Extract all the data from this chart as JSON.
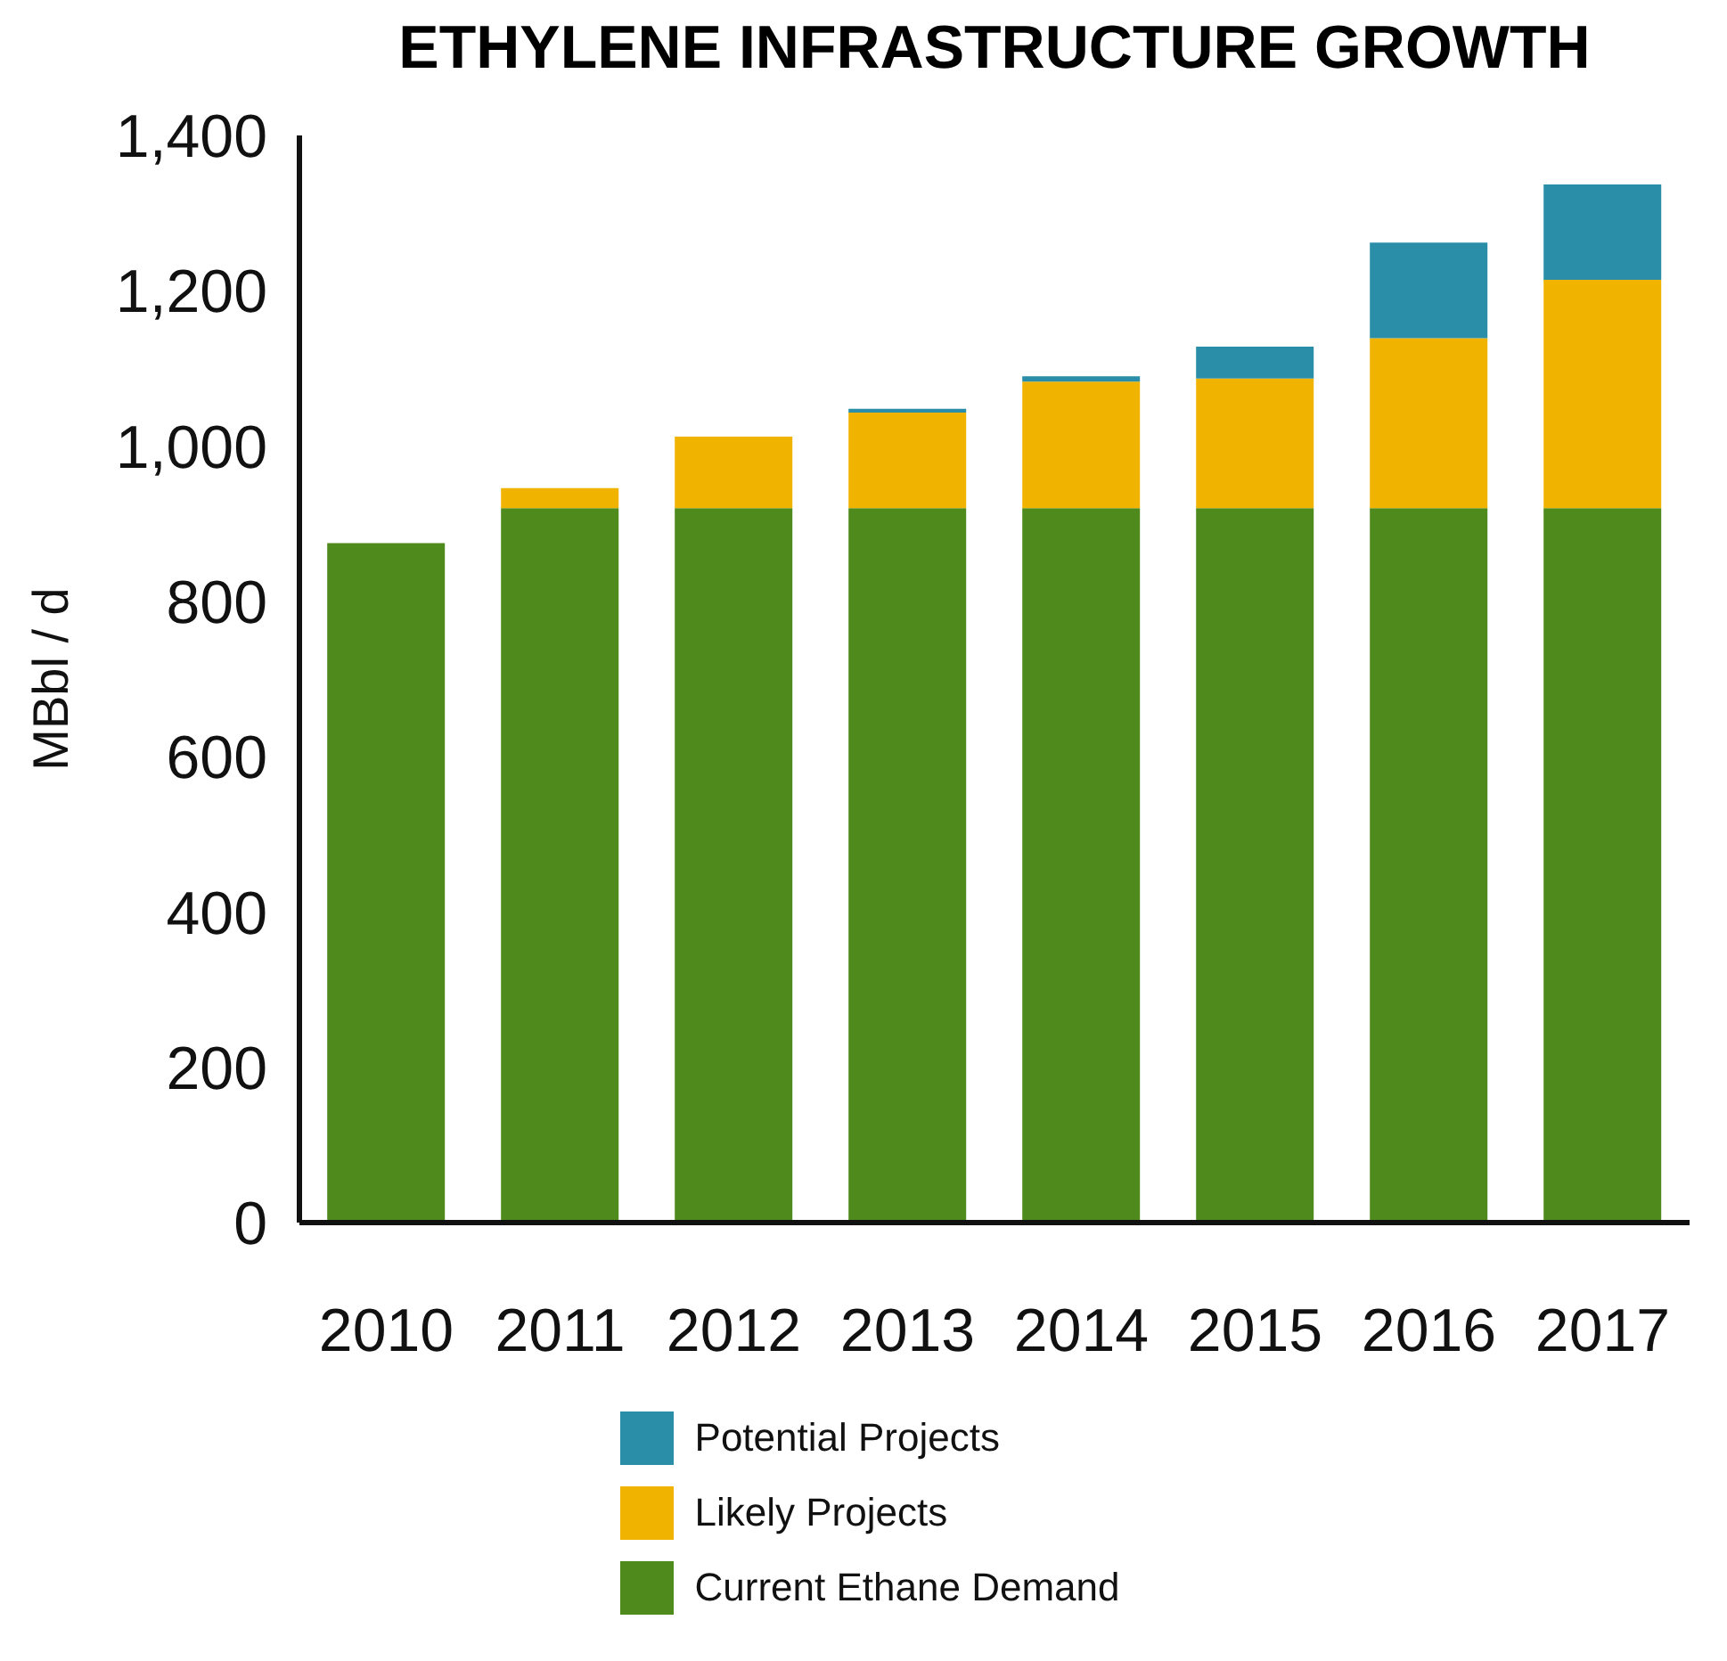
{
  "chart_data": {
    "type": "bar",
    "title": "ETHYLENE INFRASTRUCTURE GROWTH",
    "ylabel": "MBbl / d",
    "categories": [
      "2010",
      "2011",
      "2012",
      "2013",
      "2014",
      "2015",
      "2016",
      "2017"
    ],
    "stacked": true,
    "series": [
      {
        "name": "Current Ethane Demand",
        "color": "#4e8a1c",
        "values": [
          875,
          920,
          920,
          920,
          920,
          920,
          920,
          920
        ]
      },
      {
        "name": "Likely Projects",
        "color": "#f0b400",
        "values": [
          null,
          26,
          92,
          123,
          163,
          167,
          219,
          294
        ]
      },
      {
        "name": "Potential Projects",
        "color": "#2a8ea8",
        "values": [
          null,
          null,
          null,
          5,
          7,
          41,
          123,
          123
        ]
      }
    ],
    "ylim": [
      0,
      1400
    ],
    "yticks": [
      0,
      200,
      400,
      600,
      800,
      {
        "value": 1000,
        "label": "1,000"
      },
      {
        "value": 1200,
        "label": "1,200"
      },
      {
        "value": 1400,
        "label": "1,400"
      }
    ],
    "grid": false,
    "legend": "bottom"
  }
}
